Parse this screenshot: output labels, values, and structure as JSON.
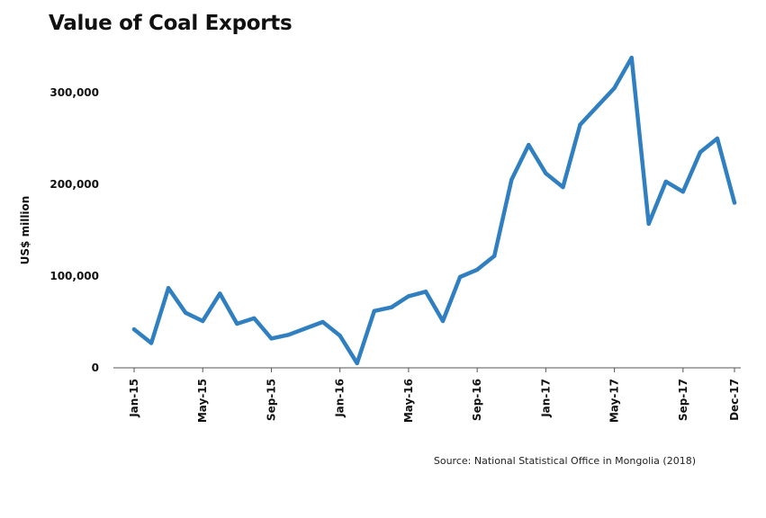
{
  "chart_data": {
    "type": "line",
    "title": "Value of Coal Exports",
    "xlabel": "",
    "ylabel": "US$ million",
    "source": "Source: National Statistical Office in Mongolia (2018)",
    "ylim": [
      0,
      340000
    ],
    "yticks": [
      0,
      100000,
      200000,
      300000
    ],
    "ytick_labels": [
      "0",
      "100,000",
      "200,000",
      "300,000"
    ],
    "grid": false,
    "legend": "none",
    "line_color": "#2f7fc1",
    "x": [
      "Jan-15",
      "Feb-15",
      "Mar-15",
      "Apr-15",
      "May-15",
      "Jun-15",
      "Jul-15",
      "Aug-15",
      "Sep-15",
      "Oct-15",
      "Nov-15",
      "Dec-15",
      "Jan-16",
      "Feb-16",
      "Mar-16",
      "Apr-16",
      "May-16",
      "Jun-16",
      "Jul-16",
      "Aug-16",
      "Sep-16",
      "Oct-16",
      "Nov-16",
      "Dec-16",
      "Jan-17",
      "Feb-17",
      "Mar-17",
      "Apr-17",
      "May-17",
      "Jun-17",
      "Jul-17",
      "Aug-17",
      "Sep-17",
      "Oct-17",
      "Nov-17",
      "Dec-17"
    ],
    "xtick_labels": [
      {
        "index": 0,
        "label": "Jan-15"
      },
      {
        "index": 4,
        "label": "May-15"
      },
      {
        "index": 8,
        "label": "Sep-15"
      },
      {
        "index": 12,
        "label": "Jan-16"
      },
      {
        "index": 16,
        "label": "May-16"
      },
      {
        "index": 20,
        "label": "Sep-16"
      },
      {
        "index": 24,
        "label": "Jan-17"
      },
      {
        "index": 28,
        "label": "May-17"
      },
      {
        "index": 32,
        "label": "Sep-17"
      },
      {
        "index": 35,
        "label": "Dec-17"
      }
    ],
    "series": [
      {
        "values": [
          42000,
          27000,
          87000,
          60000,
          51000,
          81000,
          48000,
          54000,
          32000,
          36000,
          43000,
          50000,
          35000,
          5000,
          62000,
          66000,
          78000,
          83000,
          51000,
          99000,
          107000,
          122000,
          205000,
          243000,
          212000,
          197000,
          265000,
          285000,
          305000,
          338000,
          157000,
          203000,
          192000,
          235000,
          250000,
          180000
        ]
      }
    ]
  }
}
